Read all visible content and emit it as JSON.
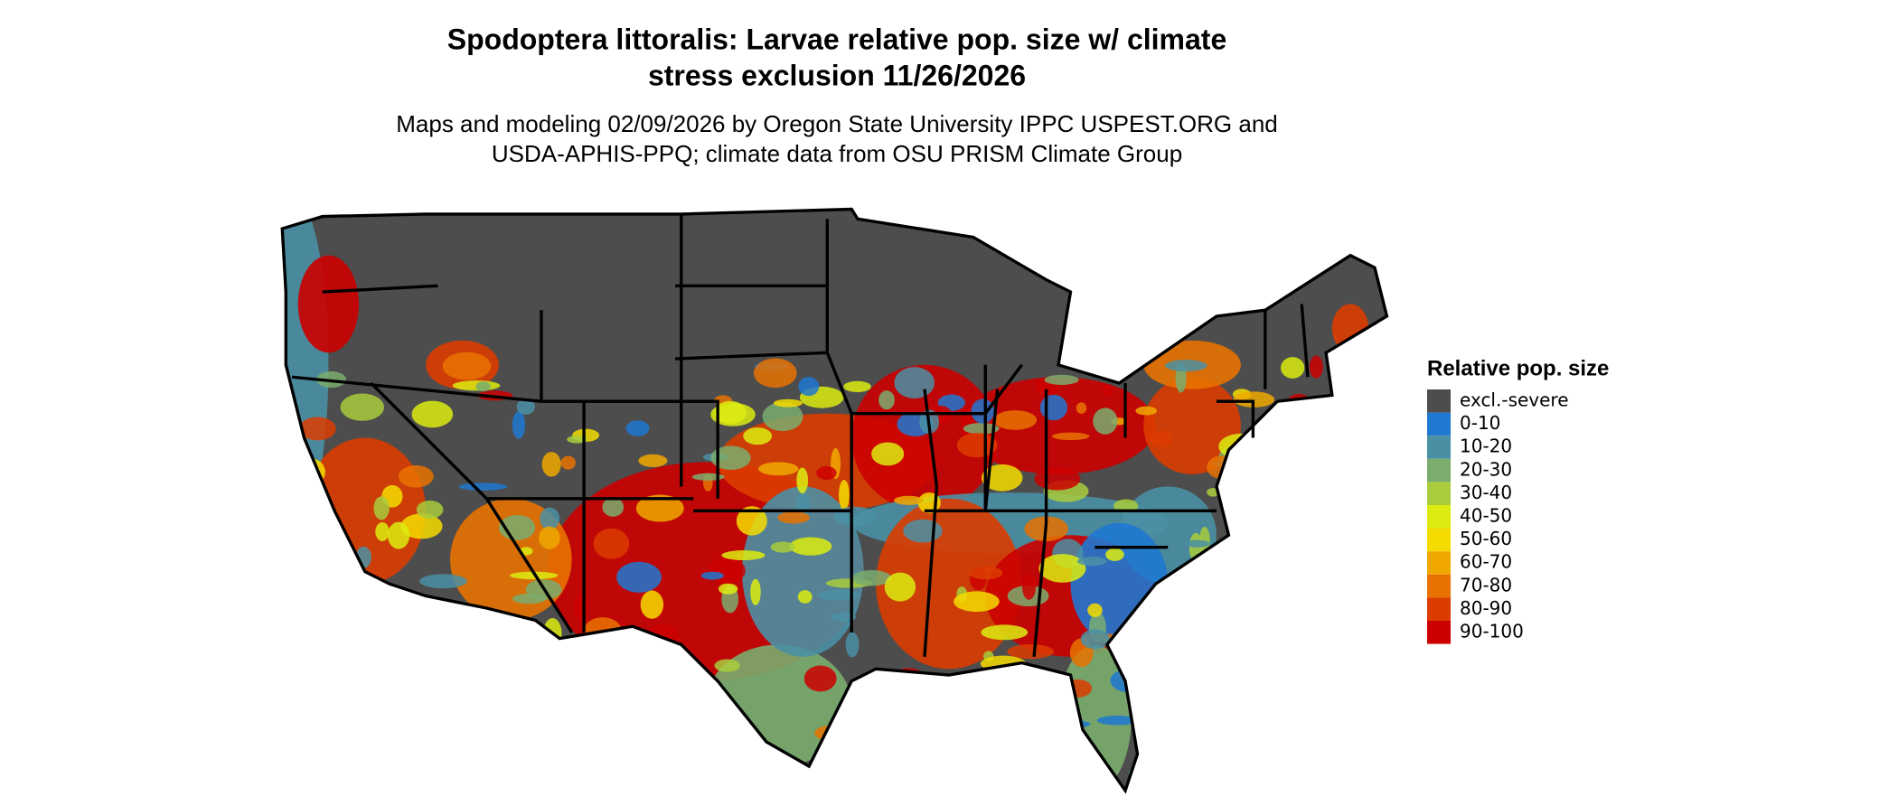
{
  "title": [
    "Spodoptera littoralis: Larvae relative pop. size w/ climate",
    "stress exclusion 11/26/2026"
  ],
  "subtitle": [
    "Maps and modeling 02/09/2026 by Oregon State University IPPC USPEST.ORG and",
    "USDA-APHIS-PPQ; climate data from OSU PRISM Climate Group"
  ],
  "legend": {
    "title": "Relative pop. size",
    "items": [
      {
        "label": "excl.-severe",
        "color": "#4d4d4d"
      },
      {
        "label": "0-10",
        "color": "#1f78d1"
      },
      {
        "label": "10-20",
        "color": "#4a90a4"
      },
      {
        "label": "20-30",
        "color": "#7aad6e"
      },
      {
        "label": "30-40",
        "color": "#a8cc3c"
      },
      {
        "label": "40-50",
        "color": "#dcec10"
      },
      {
        "label": "50-60",
        "color": "#f5dc00"
      },
      {
        "label": "60-70",
        "color": "#f0a800"
      },
      {
        "label": "70-80",
        "color": "#e87200"
      },
      {
        "label": "80-90",
        "color": "#dc3c00"
      },
      {
        "label": "90-100",
        "color": "#cc0000"
      }
    ]
  }
}
